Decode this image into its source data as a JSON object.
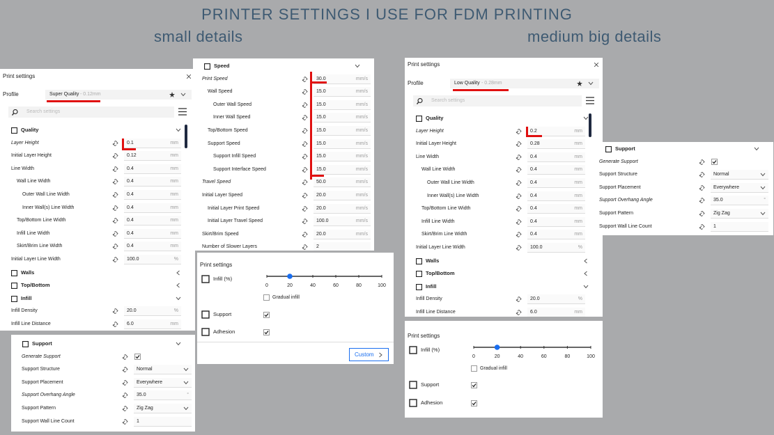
{
  "header": {
    "title": "PRINTER SETTINGS I USE FOR FDM PRINTING",
    "left_subtitle": "small details",
    "right_subtitle": "medium big details"
  },
  "panels": {
    "small_quality": {
      "title": "Print settings",
      "profile": {
        "label": "Profile",
        "name": "Super Quality",
        "detail": "- 0.12mm"
      },
      "search": "Search settings",
      "sections": [
        {
          "name": "Quality",
          "expanded": true,
          "rows": [
            {
              "label": "Layer Height",
              "value": "0.1",
              "unit": "mm",
              "modified": true
            },
            {
              "label": "Initial Layer Height",
              "value": "0.12",
              "unit": "mm"
            },
            {
              "label": "Line Width",
              "value": "0.4",
              "unit": "mm"
            },
            {
              "label": "Wall Line Width",
              "value": "0.4",
              "unit": "mm"
            },
            {
              "label": "Outer Wall Line Width",
              "value": "0.4",
              "unit": "mm"
            },
            {
              "label": "Inner Wall(s) Line Width",
              "value": "0.4",
              "unit": "mm"
            },
            {
              "label": "Top/Bottom Line Width",
              "value": "0.4",
              "unit": "mm"
            },
            {
              "label": "Infill Line Width",
              "value": "0.4",
              "unit": "mm"
            },
            {
              "label": "Skirt/Brim Line Width",
              "value": "0.4",
              "unit": "mm"
            },
            {
              "label": "Initial Layer Line Width",
              "value": "100.0",
              "unit": "%"
            }
          ]
        },
        {
          "name": "Walls",
          "expanded": false
        },
        {
          "name": "Top/Bottom",
          "expanded": false
        },
        {
          "name": "Infill",
          "expanded": true,
          "rows": [
            {
              "label": "Infill Density",
              "value": "20.0",
              "unit": "%"
            },
            {
              "label": "Infill Line Distance",
              "value": "6.0",
              "unit": "mm"
            }
          ]
        }
      ]
    },
    "small_speed": {
      "sections": [
        {
          "name": "Speed",
          "expanded": true,
          "rows": [
            {
              "label": "Print Speed",
              "value": "30.0",
              "unit": "mm/s",
              "modified": true
            },
            {
              "label": "Wall Speed",
              "value": "15.0",
              "unit": "mm/s"
            },
            {
              "label": "Outer Wall Speed",
              "value": "15.0",
              "unit": "mm/s"
            },
            {
              "label": "Inner Wall Speed",
              "value": "15.0",
              "unit": "mm/s"
            },
            {
              "label": "Top/Bottom Speed",
              "value": "15.0",
              "unit": "mm/s"
            },
            {
              "label": "Support Speed",
              "value": "15.0",
              "unit": "mm/s"
            },
            {
              "label": "Support Infill Speed",
              "value": "15.0",
              "unit": "mm/s"
            },
            {
              "label": "Support Interface Speed",
              "value": "15.0",
              "unit": "mm/s"
            },
            {
              "label": "Travel Speed",
              "value": "50.0",
              "unit": "mm/s",
              "modified": true
            },
            {
              "label": "Initial Layer Speed",
              "value": "20.0",
              "unit": "mm/s"
            },
            {
              "label": "Initial Layer Print Speed",
              "value": "20.0",
              "unit": "mm/s"
            },
            {
              "label": "Initial Layer Travel Speed",
              "value": "100.0",
              "unit": "mm/s"
            },
            {
              "label": "Skirt/Brim Speed",
              "value": "20.0",
              "unit": "mm/s"
            },
            {
              "label": "Number of Slower Layers",
              "value": "2"
            }
          ]
        }
      ]
    },
    "small_support": {
      "sections": [
        {
          "name": "Support",
          "expanded": true,
          "rows": [
            {
              "label": "Generate Support",
              "checked": true,
              "modified": true
            },
            {
              "label": "Support Structure",
              "value": "Normal",
              "dropdown": true
            },
            {
              "label": "Support Placement",
              "value": "Everywhere",
              "dropdown": true
            },
            {
              "label": "Support Overhang Angle",
              "value": "35.0",
              "unit": "°",
              "modified": true
            },
            {
              "label": "Support Pattern",
              "value": "Zig Zag",
              "dropdown": true
            },
            {
              "label": "Support Wall Line Count",
              "value": "1"
            }
          ]
        }
      ]
    },
    "small_recommended": {
      "title": "Print settings",
      "infill_label": "Infill (%)",
      "infill_ticks": [
        0,
        20,
        40,
        60,
        80,
        100
      ],
      "infill_value": 20,
      "gradual_label": "Gradual infill",
      "gradual_checked": false,
      "support_label": "Support",
      "support_checked": true,
      "adhesion_label": "Adhesion",
      "adhesion_checked": true,
      "button": "Custom"
    },
    "big_quality": {
      "title": "Print settings",
      "profile": {
        "label": "Profile",
        "name": "Low Quality",
        "detail": "- 0.28mm"
      },
      "search": "Search settings",
      "sections": [
        {
          "name": "Quality",
          "expanded": true,
          "rows": [
            {
              "label": "Layer Height",
              "value": "0.2",
              "unit": "mm",
              "modified": true
            },
            {
              "label": "Initial Layer Height",
              "value": "0.28",
              "unit": "mm"
            },
            {
              "label": "Line Width",
              "value": "0.4",
              "unit": "mm"
            },
            {
              "label": "Wall Line Width",
              "value": "0.4",
              "unit": "mm"
            },
            {
              "label": "Outer Wall Line Width",
              "value": "0.4",
              "unit": "mm"
            },
            {
              "label": "Inner Wall(s) Line Width",
              "value": "0.4",
              "unit": "mm"
            },
            {
              "label": "Top/Bottom Line Width",
              "value": "0.4",
              "unit": "mm"
            },
            {
              "label": "Infill Line Width",
              "value": "0.4",
              "unit": "mm"
            },
            {
              "label": "Skirt/Brim Line Width",
              "value": "0.4",
              "unit": "mm"
            },
            {
              "label": "Initial Layer Line Width",
              "value": "100.0",
              "unit": "%"
            }
          ]
        },
        {
          "name": "Walls",
          "expanded": false
        },
        {
          "name": "Top/Bottom",
          "expanded": false
        },
        {
          "name": "Infill",
          "expanded": true,
          "rows": [
            {
              "label": "Infill Density",
              "value": "20.0",
              "unit": "%"
            },
            {
              "label": "Infill Line Distance",
              "value": "6.0",
              "unit": "mm"
            }
          ]
        }
      ]
    },
    "big_support": {
      "sections": [
        {
          "name": "Support",
          "expanded": true,
          "rows": [
            {
              "label": "Generate Support",
              "checked": true,
              "modified": true
            },
            {
              "label": "Support Structure",
              "value": "Normal",
              "dropdown": true
            },
            {
              "label": "Support Placement",
              "value": "Everywhere",
              "dropdown": true
            },
            {
              "label": "Support Overhang Angle",
              "value": "35.0",
              "unit": "°",
              "modified": true
            },
            {
              "label": "Support Pattern",
              "value": "Zig Zag",
              "dropdown": true
            },
            {
              "label": "Support Wall Line Count",
              "value": "1"
            }
          ]
        }
      ]
    },
    "big_recommended": {
      "title": "Print settings",
      "infill_label": "Infill (%)",
      "infill_ticks": [
        0,
        20,
        40,
        60,
        80,
        100
      ],
      "infill_value": 20,
      "gradual_label": "Gradual infill",
      "gradual_checked": false,
      "support_label": "Support",
      "support_checked": true,
      "adhesion_label": "Adhesion",
      "adhesion_checked": true
    }
  }
}
